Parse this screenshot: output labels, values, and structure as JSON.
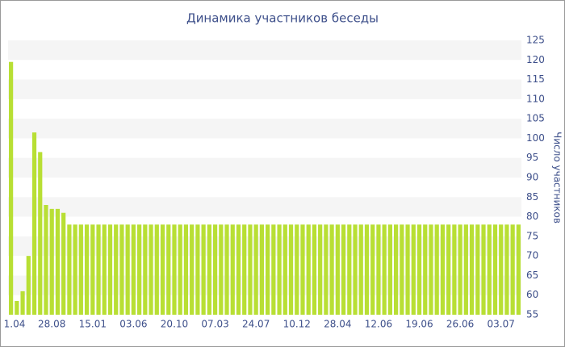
{
  "chart_data": {
    "type": "bar",
    "title": "Динамика участников беседы",
    "y_label": "Число участников",
    "y_axis_side": "right",
    "categories": [
      "1.04",
      null,
      null,
      null,
      null,
      null,
      null,
      "28.08",
      null,
      null,
      null,
      null,
      null,
      null,
      "15.01",
      null,
      null,
      null,
      null,
      null,
      null,
      "03.06",
      null,
      null,
      null,
      null,
      null,
      null,
      "20.10",
      null,
      null,
      null,
      null,
      null,
      null,
      "07.03",
      null,
      null,
      null,
      null,
      null,
      null,
      "24.07",
      null,
      null,
      null,
      null,
      null,
      null,
      "10.12",
      null,
      null,
      null,
      null,
      null,
      null,
      "28.04",
      null,
      null,
      null,
      null,
      null,
      null,
      "12.06",
      null,
      null,
      null,
      null,
      null,
      null,
      "19.06",
      null,
      null,
      null,
      null,
      null,
      null,
      "26.06",
      null,
      null,
      null,
      null,
      null,
      null,
      "03.07",
      null,
      null,
      null
    ],
    "values": [
      119.5,
      58.5,
      61,
      70,
      101.5,
      96.5,
      83,
      82,
      82,
      81,
      78,
      78,
      78,
      78,
      78,
      78,
      78,
      78,
      78,
      78,
      78,
      78,
      78,
      78,
      78,
      78,
      78,
      78,
      78,
      78,
      78,
      78,
      78,
      78,
      78,
      78,
      78,
      78,
      78,
      78,
      78,
      78,
      78,
      78,
      78,
      78,
      78,
      78,
      78,
      78,
      78,
      78,
      78,
      78,
      78,
      78,
      78,
      78,
      78,
      78,
      78,
      78,
      78,
      78,
      78,
      78,
      78,
      78,
      78,
      78,
      78,
      78,
      78,
      78,
      78,
      78,
      78,
      78,
      78,
      78,
      78,
      78,
      78,
      78,
      78,
      78,
      78,
      78
    ],
    "color": "#b8df34",
    "ylim": [
      55,
      125
    ],
    "yticks": [
      55,
      60,
      65,
      70,
      75,
      80,
      85,
      90,
      95,
      100,
      105,
      110,
      115,
      120,
      125
    ],
    "grid": true
  }
}
